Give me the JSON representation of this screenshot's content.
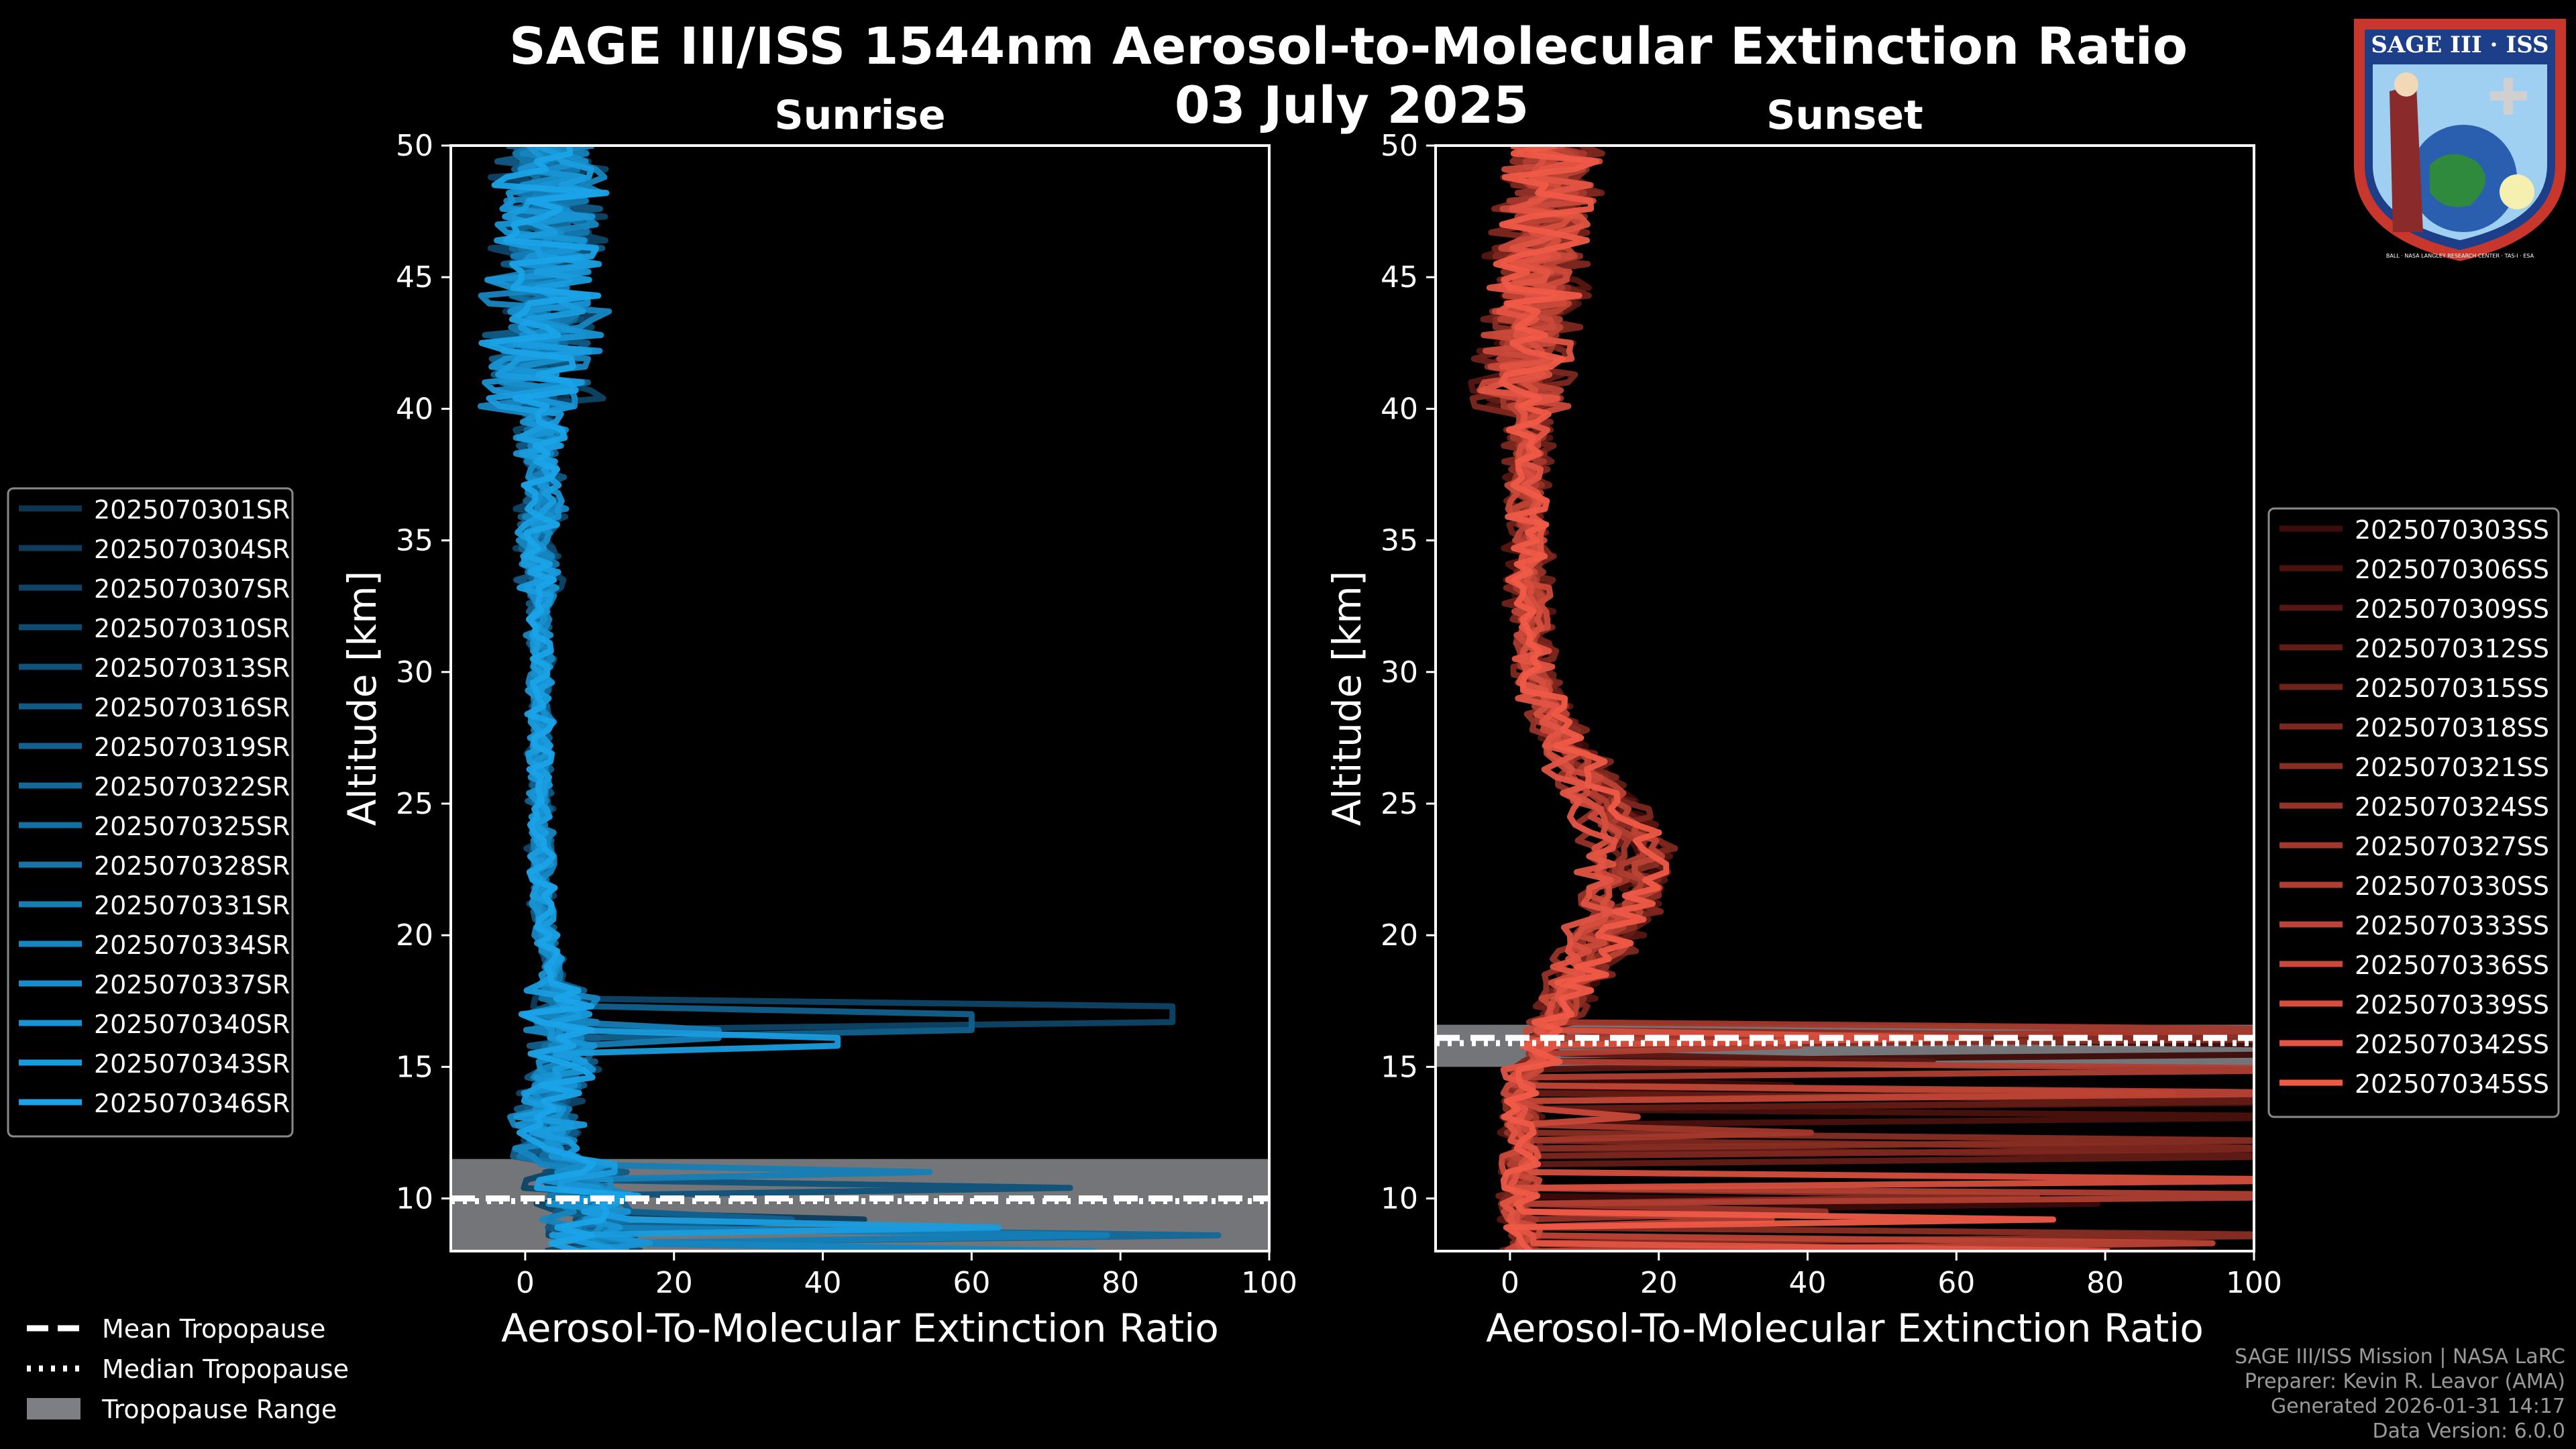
{
  "chart_data": {
    "type": "line",
    "title": "SAGE III/ISS 1544nm Aerosol-to-Molecular Extinction Ratio",
    "date": "03 July 2025",
    "panels": [
      {
        "name": "Sunrise",
        "xlabel": "Aerosol-To-Molecular Extinction Ratio",
        "ylabel": "Altitude [km]",
        "xlim": [
          -10,
          100
        ],
        "ylim": [
          8,
          50
        ],
        "xticks": [
          0,
          20,
          40,
          60,
          80,
          100
        ],
        "yticks": [
          10,
          15,
          20,
          25,
          30,
          35,
          40,
          45,
          50
        ],
        "color_dark": "#0c3552",
        "color_light": "#1aa3e8",
        "tropopause": {
          "mean": 10.0,
          "median": 9.9,
          "range": [
            8.0,
            11.5
          ]
        },
        "spikes": [
          {
            "altitude": 17.0,
            "value": 87
          },
          {
            "altitude": 16.7,
            "value": 60
          },
          {
            "altitude": 16.2,
            "value": 26
          },
          {
            "altitude": 16.0,
            "value": 42
          }
        ],
        "legend": [
          "2025070301SR",
          "2025070304SR",
          "2025070307SR",
          "2025070310SR",
          "2025070313SR",
          "2025070316SR",
          "2025070319SR",
          "2025070322SR",
          "2025070325SR",
          "2025070328SR",
          "2025070331SR",
          "2025070334SR",
          "2025070337SR",
          "2025070340SR",
          "2025070343SR",
          "2025070346SR"
        ]
      },
      {
        "name": "Sunset",
        "xlabel": "Aerosol-To-Molecular Extinction Ratio",
        "ylabel": "Altitude [km]",
        "xlim": [
          -10,
          100
        ],
        "ylim": [
          8,
          50
        ],
        "xticks": [
          0,
          20,
          40,
          60,
          80,
          100
        ],
        "yticks": [
          10,
          15,
          20,
          25,
          30,
          35,
          40,
          45,
          50
        ],
        "color_dark": "#3d0b08",
        "color_light": "#ef5a47",
        "tropopause": {
          "mean": 16.1,
          "median": 15.9,
          "range": [
            15.0,
            16.6
          ]
        },
        "peak": {
          "altitude": 22.5,
          "value": 21
        },
        "legend": [
          "2025070303SS",
          "2025070306SS",
          "2025070309SS",
          "2025070312SS",
          "2025070315SS",
          "2025070318SS",
          "2025070321SS",
          "2025070324SS",
          "2025070327SS",
          "2025070330SS",
          "2025070333SS",
          "2025070336SS",
          "2025070339SS",
          "2025070342SS",
          "2025070345SS"
        ]
      }
    ],
    "tropopause_legend": [
      "Mean Tropopause",
      "Median Tropopause",
      "Tropopause Range"
    ]
  },
  "logo": {
    "title": "SAGE III · ISS",
    "ring": "BALL · NASA LANGLEY RESEARCH CENTER · TAS-I · ESA"
  },
  "credits": {
    "line1": "SAGE III/ISS Mission | NASA LaRC",
    "line2": "Preparer: Kevin R. Leavor (AMA)",
    "line3": "Generated 2026-01-31 14:17",
    "line4": "Data Version: 6.0.0"
  }
}
